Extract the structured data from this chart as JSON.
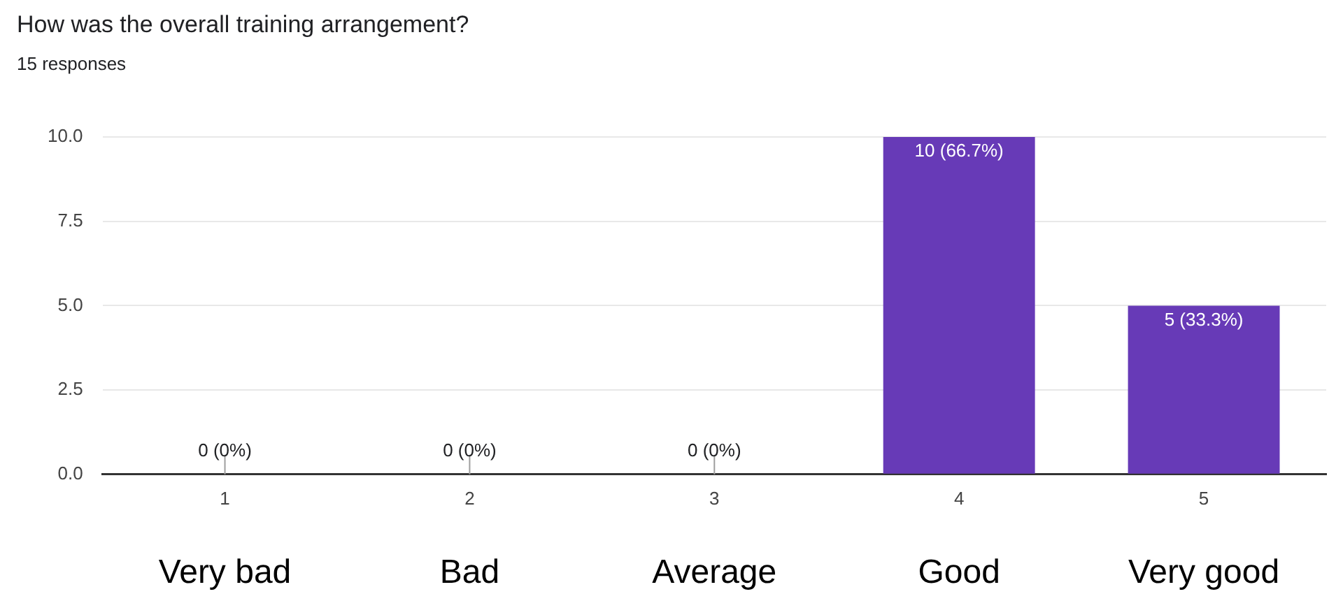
{
  "chart_data": {
    "type": "bar",
    "title": "How was the overall training arrangement?",
    "subtitle": "15 responses",
    "categories": [
      "1",
      "2",
      "3",
      "4",
      "5"
    ],
    "values": [
      0,
      0,
      0,
      10,
      5
    ],
    "value_labels": [
      "0 (0%)",
      "0 (0%)",
      "0 (0%)",
      "10 (66.7%)",
      "5 (33.3%)"
    ],
    "color": "#673ab7",
    "ylim": [
      0,
      10
    ],
    "yticks": [
      {
        "value": 0,
        "label": "0.0"
      },
      {
        "value": 2.5,
        "label": "2.5"
      },
      {
        "value": 5,
        "label": "5.0"
      },
      {
        "value": 7.5,
        "label": "7.5"
      },
      {
        "value": 10,
        "label": "10.0"
      }
    ],
    "grid": "y",
    "legend": false,
    "annotations": [
      "Very bad",
      "Bad",
      "Average",
      "Good",
      "Very good"
    ]
  }
}
